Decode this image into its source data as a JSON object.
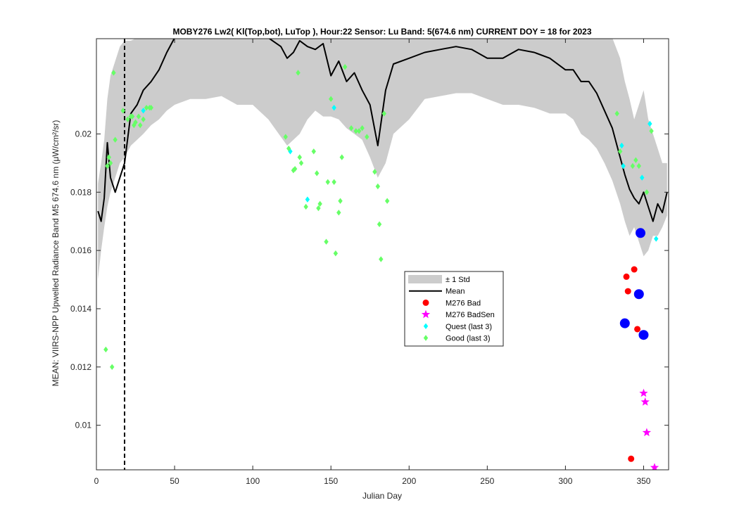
{
  "chart_data": {
    "type": "scatter",
    "title": "MOBY276   Lw2( Kl(Top,bot), LuTop ),   Hour:22 Sensor: Lu Band: 5(674.6 nm)   CURRENT DOY = 18 for 2023",
    "xlabel": "Julian Day",
    "ylabel": "MEAN: VIIRS-NPP Upwelled Radiance Band M5 674.6 nm (μW/cm²/sr)",
    "xlim": [
      0,
      366
    ],
    "ylim": [
      0.00847,
      0.02327
    ],
    "x_ticks": [
      0,
      50,
      100,
      150,
      200,
      250,
      300,
      350
    ],
    "x_tick_labels": [
      "0",
      "50",
      "100",
      "150",
      "200",
      "250",
      "300",
      "350"
    ],
    "y_ticks": [
      0.01,
      0.012,
      0.014,
      0.016,
      0.018,
      0.02
    ],
    "y_tick_labels": [
      "0.01",
      "0.012",
      "0.014",
      "0.016",
      "0.018",
      "0.02"
    ],
    "grid": false,
    "legend_position": "center-right",
    "current_doy": 18,
    "std_band": {
      "name": "± 1 Std",
      "color": "#cccccc",
      "x": [
        1,
        3,
        5,
        7,
        9,
        12,
        15,
        18,
        22,
        26,
        30,
        35,
        40,
        45,
        50,
        60,
        70,
        80,
        90,
        100,
        110,
        118,
        122,
        126,
        130,
        135,
        140,
        145,
        150,
        155,
        160,
        165,
        170,
        175,
        180,
        185,
        190,
        200,
        210,
        220,
        230,
        240,
        250,
        260,
        270,
        280,
        290,
        300,
        305,
        310,
        315,
        320,
        325,
        330,
        335,
        338,
        341,
        344,
        347,
        350,
        353,
        356,
        359,
        362,
        365
      ],
      "upper": [
        0.0183,
        0.019,
        0.0198,
        0.0212,
        0.022,
        0.0225,
        0.023,
        0.0232,
        0.0232,
        0.0233,
        0.0233,
        0.0233,
        0.0233,
        0.0233,
        0.0233,
        0.0233,
        0.0233,
        0.0233,
        0.0233,
        0.0233,
        0.0233,
        0.0233,
        0.0233,
        0.0233,
        0.0233,
        0.0233,
        0.0233,
        0.0233,
        0.0233,
        0.0233,
        0.0233,
        0.0233,
        0.0233,
        0.0233,
        0.0233,
        0.0233,
        0.0233,
        0.0233,
        0.0233,
        0.0233,
        0.0233,
        0.0233,
        0.0233,
        0.0233,
        0.0233,
        0.0233,
        0.0233,
        0.0233,
        0.0233,
        0.0233,
        0.0233,
        0.0233,
        0.0233,
        0.0233,
        0.0226,
        0.0218,
        0.0212,
        0.0205,
        0.021,
        0.0215,
        0.0205,
        0.02,
        0.0195,
        0.019,
        0.019
      ],
      "lower": [
        0.015,
        0.016,
        0.0168,
        0.0175,
        0.018,
        0.0185,
        0.019,
        0.0192,
        0.0196,
        0.0198,
        0.02,
        0.0203,
        0.0205,
        0.0208,
        0.021,
        0.0212,
        0.0212,
        0.0213,
        0.021,
        0.021,
        0.0205,
        0.0199,
        0.0196,
        0.0198,
        0.02,
        0.0205,
        0.0208,
        0.0206,
        0.0206,
        0.0205,
        0.0202,
        0.02,
        0.0198,
        0.0192,
        0.0185,
        0.019,
        0.02,
        0.0205,
        0.0212,
        0.0213,
        0.0214,
        0.0214,
        0.0212,
        0.021,
        0.021,
        0.0209,
        0.0207,
        0.0207,
        0.0205,
        0.02,
        0.0198,
        0.0195,
        0.019,
        0.0184,
        0.0176,
        0.017,
        0.0165,
        0.0168,
        0.0163,
        0.0158,
        0.016,
        0.0165,
        0.0165,
        0.0168,
        0.0172
      ]
    },
    "series": [
      {
        "name": "Mean",
        "kind": "line",
        "color": "#000000",
        "x": [
          1,
          3,
          5,
          7,
          9,
          12,
          15,
          18,
          22,
          26,
          30,
          35,
          40,
          45,
          50,
          60,
          70,
          80,
          90,
          100,
          110,
          118,
          122,
          126,
          130,
          135,
          140,
          145,
          150,
          155,
          160,
          165,
          170,
          175,
          180,
          185,
          190,
          200,
          210,
          220,
          230,
          240,
          250,
          260,
          270,
          280,
          290,
          300,
          305,
          310,
          315,
          320,
          325,
          330,
          335,
          338,
          341,
          344,
          347,
          350,
          353,
          356,
          359,
          362,
          365
        ],
        "y": [
          0.01735,
          0.017,
          0.0178,
          0.0197,
          0.0185,
          0.018,
          0.0185,
          0.019,
          0.0207,
          0.021,
          0.0215,
          0.0218,
          0.0222,
          0.0228,
          0.0233,
          0.0233,
          0.0233,
          0.0233,
          0.0233,
          0.0233,
          0.0233,
          0.023,
          0.0226,
          0.0228,
          0.0232,
          0.023,
          0.0229,
          0.0231,
          0.022,
          0.0225,
          0.0218,
          0.0221,
          0.0215,
          0.021,
          0.0196,
          0.0215,
          0.0224,
          0.0226,
          0.0228,
          0.0229,
          0.023,
          0.0229,
          0.0226,
          0.0226,
          0.0229,
          0.0228,
          0.0226,
          0.0222,
          0.0222,
          0.0218,
          0.0218,
          0.0214,
          0.0208,
          0.0202,
          0.0192,
          0.0186,
          0.0181,
          0.0178,
          0.0176,
          0.018,
          0.0175,
          0.017,
          0.0176,
          0.0173,
          0.018
        ]
      },
      {
        "name": "M276 Bad",
        "kind": "points",
        "marker": "circle",
        "color": "#ff0000",
        "x": [
          339,
          340,
          342,
          344,
          346
        ],
        "y": [
          0.0151,
          0.0146,
          0.00885,
          0.01535,
          0.0133
        ]
      },
      {
        "name": "M276 BadSen",
        "kind": "points",
        "marker": "star",
        "color": "#ff00ff",
        "x": [
          350,
          351,
          352,
          357
        ],
        "y": [
          0.0111,
          0.0108,
          0.00975,
          0.00855
        ]
      },
      {
        "name": "Quest (last 3)",
        "kind": "points",
        "marker": "diamond",
        "color": "#00ffff",
        "x": [
          30,
          124,
          135,
          152,
          336,
          337,
          349,
          354,
          358
        ],
        "y": [
          0.0208,
          0.0194,
          0.01775,
          0.0209,
          0.0196,
          0.0189,
          0.0185,
          0.02035,
          0.0164
        ]
      },
      {
        "name": "Good (last 3)",
        "kind": "points",
        "marker": "diamond",
        "color": "#66ff66",
        "x": [
          6,
          8,
          9,
          10,
          12,
          17,
          20,
          22,
          23,
          24,
          25,
          27,
          28,
          30,
          32,
          34,
          35,
          121,
          123,
          126,
          127,
          129,
          130,
          131,
          134,
          139,
          141,
          142,
          143,
          147,
          148,
          150,
          152,
          153,
          155,
          156,
          157,
          159,
          163,
          166,
          168,
          170,
          173,
          178,
          180,
          181,
          182,
          184,
          186,
          333,
          335,
          343,
          345,
          347,
          352,
          355,
          7,
          11
        ],
        "y": [
          0.0126,
          0.0192,
          0.019,
          0.012,
          0.0198,
          0.0208,
          0.0205,
          0.0206,
          0.0206,
          0.0203,
          0.0204,
          0.0206,
          0.0203,
          0.0205,
          0.0209,
          0.0209,
          0.0209,
          0.0199,
          0.0195,
          0.01875,
          0.0188,
          0.0221,
          0.0192,
          0.019,
          0.0175,
          0.0194,
          0.01865,
          0.01745,
          0.0176,
          0.0163,
          0.01835,
          0.0212,
          0.01835,
          0.0159,
          0.0173,
          0.0177,
          0.0192,
          0.0223,
          0.0202,
          0.0201,
          0.0201,
          0.0202,
          0.0199,
          0.0187,
          0.0182,
          0.0169,
          0.0157,
          0.0207,
          0.0177,
          0.0207,
          0.0194,
          0.0189,
          0.0191,
          0.0189,
          0.018,
          0.0201,
          0.0189,
          0.0221
        ]
      },
      {
        "name": "",
        "kind": "points",
        "marker": "circle-large",
        "color": "#0000ff",
        "x": [
          338,
          347,
          348,
          350
        ],
        "y": [
          0.0135,
          0.0145,
          0.0166,
          0.0131
        ]
      }
    ],
    "legend": [
      {
        "label": "± 1 Std",
        "symbol": "band"
      },
      {
        "label": "Mean",
        "symbol": "line"
      },
      {
        "label": "M276 Bad",
        "symbol": "circle"
      },
      {
        "label": "M276 BadSen",
        "symbol": "star"
      },
      {
        "label": "Quest (last 3)",
        "symbol": "diamond-cyan"
      },
      {
        "label": "Good (last 3)",
        "symbol": "diamond-green"
      }
    ]
  }
}
